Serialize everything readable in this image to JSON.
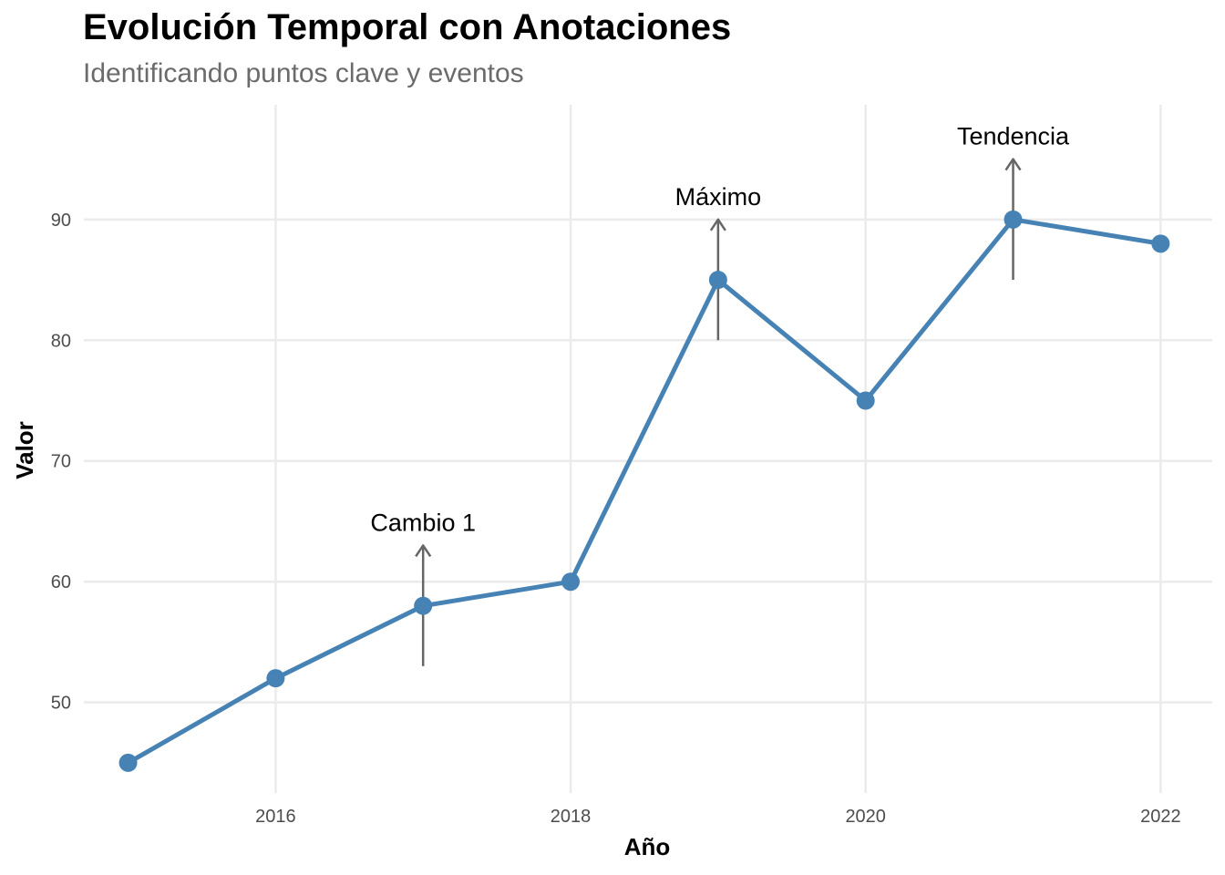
{
  "title": "Evolución Temporal con Anotaciones",
  "subtitle": "Identificando puntos clave y eventos",
  "chart_data": {
    "type": "line",
    "title": "Evolución Temporal con Anotaciones",
    "subtitle": "Identificando puntos clave y eventos",
    "xlabel": "Año",
    "ylabel": "Valor",
    "x": [
      2015,
      2016,
      2017,
      2018,
      2019,
      2020,
      2021,
      2022
    ],
    "series": [
      {
        "values": [
          45,
          52,
          58,
          60,
          85,
          75,
          90,
          88
        ]
      }
    ],
    "xlim": [
      2014.7,
      2022.35
    ],
    "ylim": [
      42.5,
      99.5
    ],
    "x_ticks": [
      2016,
      2018,
      2020,
      2022
    ],
    "y_ticks": [
      50,
      60,
      70,
      80,
      90
    ],
    "grid": true,
    "legend": "none",
    "annotations": [
      {
        "text": "Cambio 1",
        "x": 2017,
        "y": 58,
        "arrow_from": 53,
        "arrow_to": 63
      },
      {
        "text": "Máximo",
        "x": 2019,
        "y": 85,
        "arrow_from": 80,
        "arrow_to": 90
      },
      {
        "text": "Tendencia",
        "x": 2021,
        "y": 90,
        "arrow_from": 85,
        "arrow_to": 95
      }
    ],
    "colors": {
      "line": "#4682b4",
      "points": "#4682b4",
      "grid": "#ebebeb",
      "arrow": "#666666"
    }
  }
}
